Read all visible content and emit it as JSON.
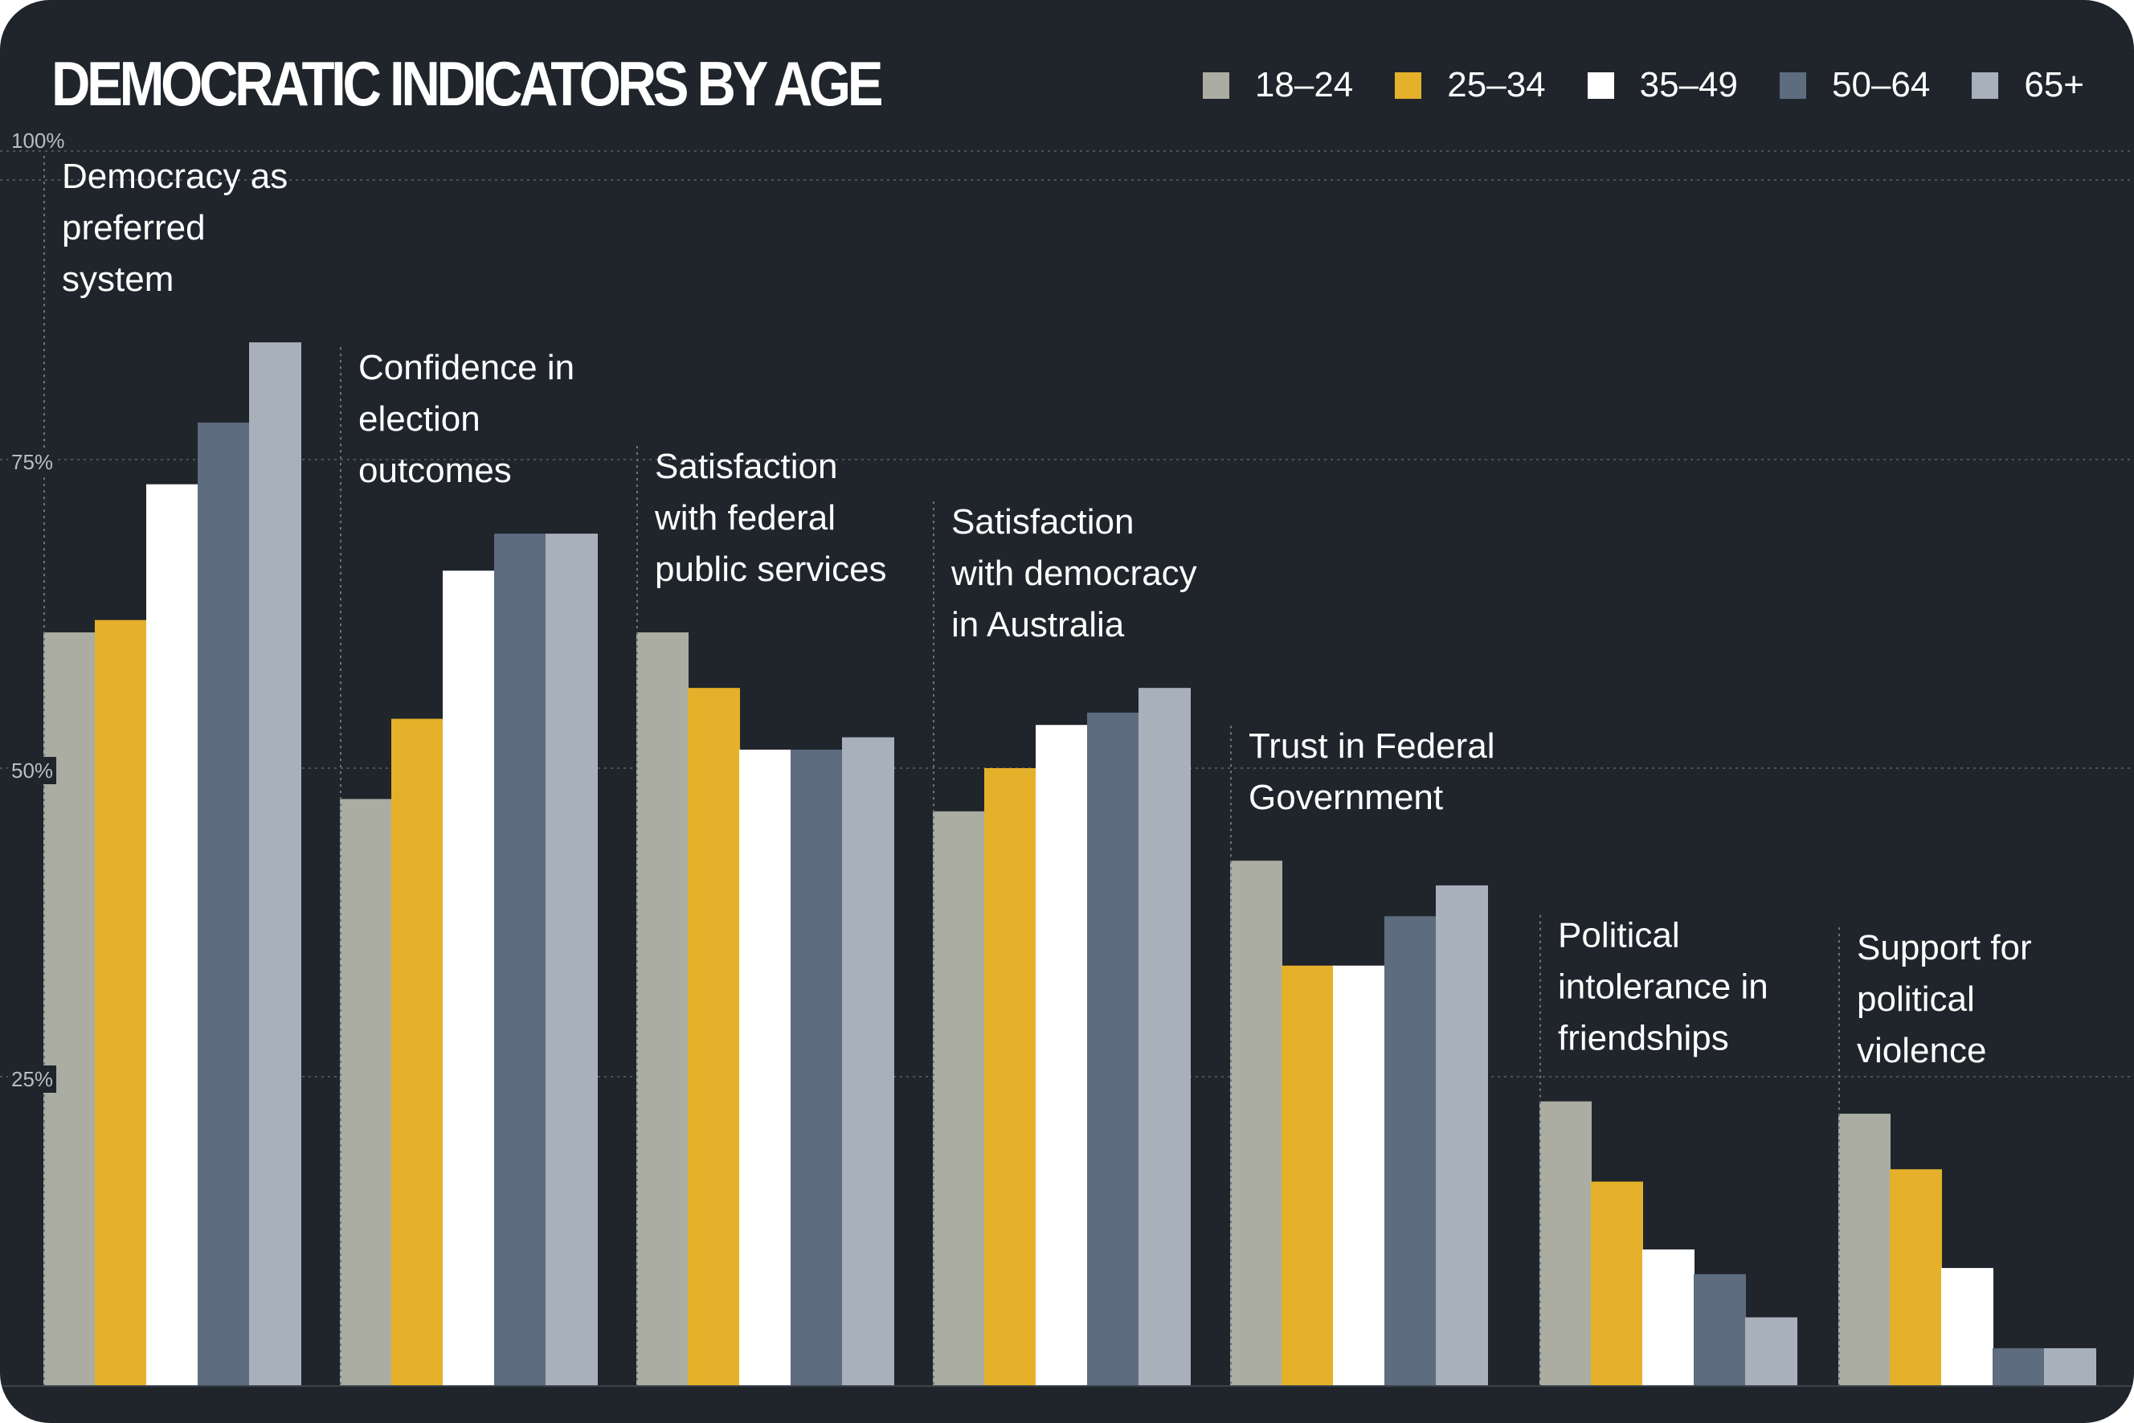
{
  "title": "DEMOCRATIC INDICATORS BY AGE",
  "colors": {
    "background": "#1f252b",
    "18-24": "#abada3",
    "25-34": "#e5b12a",
    "35-49": "#ffffff",
    "50-64": "#5d6c7e",
    "65+": "#a8b1bb"
  },
  "legend": [
    {
      "label": "18–24",
      "color": "#abada3"
    },
    {
      "label": "25–34",
      "color": "#e5b12a"
    },
    {
      "label": "35–49",
      "color": "#ffffff"
    },
    {
      "label": "50–64",
      "color": "#5d6c7e"
    },
    {
      "label": "65+",
      "color": "#a8b1bb"
    }
  ],
  "chart_data": {
    "type": "bar",
    "title": "DEMOCRATIC INDICATORS BY AGE",
    "xlabel": "",
    "ylabel": "",
    "ylim": [
      0,
      100
    ],
    "y_ticks": [
      {
        "value": 100,
        "label": "100%"
      },
      {
        "value": 75,
        "label": "75%"
      },
      {
        "value": 50,
        "label": "50%"
      },
      {
        "value": 25,
        "label": "25%"
      }
    ],
    "grid": true,
    "legend_position": "top-right",
    "categories": [
      [
        "Democracy as",
        "preferred",
        "system"
      ],
      [
        "Confidence in",
        "election",
        "outcomes"
      ],
      [
        "Satisfaction",
        "with federal",
        "public services"
      ],
      [
        "Satisfaction",
        "with democracy",
        "in Australia"
      ],
      [
        "Trust in Federal",
        "Government"
      ],
      [
        "Political",
        "intolerance in",
        "friendships"
      ],
      [
        "Support for",
        "political",
        "violence"
      ]
    ],
    "series": [
      {
        "name": "18–24",
        "color": "#abada3",
        "values": [
          61,
          47.5,
          61,
          46.5,
          42.5,
          23,
          22
        ]
      },
      {
        "name": "25–34",
        "color": "#e5b12a",
        "values": [
          62,
          54,
          56.5,
          50,
          34,
          16.5,
          17.5
        ]
      },
      {
        "name": "35–49",
        "color": "#ffffff",
        "values": [
          73,
          66,
          51.5,
          53.5,
          34,
          11,
          9.5
        ]
      },
      {
        "name": "50–64",
        "color": "#5d6c7e",
        "values": [
          78,
          69,
          51.5,
          54.5,
          38,
          9,
          3
        ]
      },
      {
        "name": "65+",
        "color": "#a8b1bb",
        "values": [
          84.5,
          69,
          52.5,
          56.5,
          40.5,
          5.5,
          3
        ]
      }
    ]
  }
}
